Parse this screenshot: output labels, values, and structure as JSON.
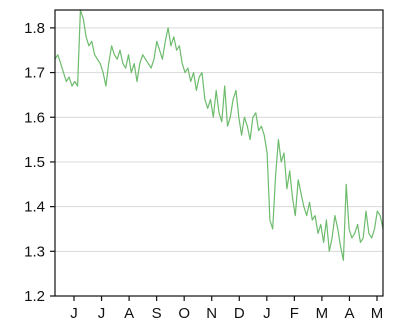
{
  "chart_data": {
    "type": "line",
    "title": "",
    "xlabel": "",
    "ylabel": "",
    "ylim": [
      1.2,
      1.84
    ],
    "grid": true,
    "legend": "none",
    "colors": {
      "series": "#6dbb6d",
      "grid": "#d9d9d9",
      "axis": "#111111"
    },
    "y_ticks": [
      {
        "value": 1.2,
        "label": "1.2"
      },
      {
        "value": 1.3,
        "label": "1.3"
      },
      {
        "value": 1.4,
        "label": "1.4"
      },
      {
        "value": 1.5,
        "label": "1.5"
      },
      {
        "value": 1.6,
        "label": "1.6"
      },
      {
        "value": 1.7,
        "label": "1.7"
      },
      {
        "value": 1.8,
        "label": "1.8"
      }
    ],
    "x_ticks": [
      "J",
      "J",
      "A",
      "S",
      "O",
      "N",
      "D",
      "J",
      "F",
      "M",
      "A",
      "M"
    ],
    "series": [
      {
        "values": [
          1.73,
          1.74,
          1.72,
          1.7,
          1.68,
          1.69,
          1.67,
          1.68,
          1.67,
          1.84,
          1.82,
          1.78,
          1.76,
          1.77,
          1.74,
          1.73,
          1.72,
          1.7,
          1.67,
          1.72,
          1.76,
          1.74,
          1.73,
          1.75,
          1.72,
          1.71,
          1.74,
          1.7,
          1.72,
          1.68,
          1.72,
          1.74,
          1.73,
          1.72,
          1.71,
          1.73,
          1.77,
          1.75,
          1.73,
          1.77,
          1.8,
          1.76,
          1.78,
          1.75,
          1.76,
          1.72,
          1.7,
          1.71,
          1.68,
          1.7,
          1.66,
          1.69,
          1.7,
          1.64,
          1.62,
          1.64,
          1.6,
          1.66,
          1.61,
          1.59,
          1.67,
          1.58,
          1.6,
          1.64,
          1.66,
          1.6,
          1.56,
          1.6,
          1.58,
          1.55,
          1.6,
          1.61,
          1.57,
          1.58,
          1.56,
          1.52,
          1.37,
          1.35,
          1.47,
          1.55,
          1.5,
          1.52,
          1.44,
          1.48,
          1.42,
          1.38,
          1.46,
          1.43,
          1.4,
          1.38,
          1.41,
          1.37,
          1.38,
          1.34,
          1.36,
          1.32,
          1.37,
          1.3,
          1.33,
          1.38,
          1.35,
          1.31,
          1.28,
          1.45,
          1.35,
          1.33,
          1.34,
          1.36,
          1.32,
          1.33,
          1.39,
          1.34,
          1.33,
          1.35,
          1.39,
          1.38,
          1.35
        ]
      }
    ]
  }
}
